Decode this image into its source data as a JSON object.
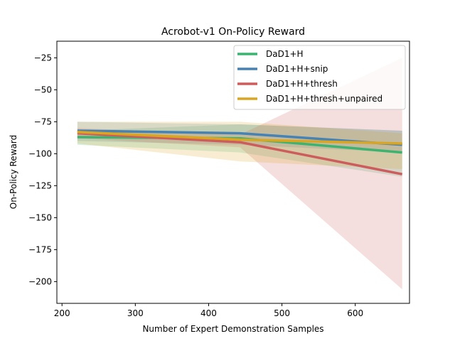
{
  "chart_data": {
    "type": "line",
    "title": "Acrobot-v1 On-Policy Reward",
    "xlabel": "Number of Expert Demonstration Samples",
    "ylabel": "On-Policy Reward",
    "xlim": [
      193,
      674
    ],
    "ylim": [
      -217,
      -12
    ],
    "xticks": [
      200,
      300,
      400,
      500,
      600
    ],
    "yticks": [
      -25,
      -50,
      -75,
      -100,
      -125,
      -150,
      -175,
      -200
    ],
    "legend_position": "upper-right",
    "x": [
      221,
      443,
      664
    ],
    "series": [
      {
        "name": "DaD1+H",
        "color": "#3cb371",
        "values": [
          -87,
          -88,
          -99
        ],
        "lower": [
          -93,
          -99,
          -118
        ],
        "upper": [
          -82,
          -77,
          -82
        ]
      },
      {
        "name": "DaD1+H+snip",
        "color": "#4682b4",
        "values": [
          -82,
          -84,
          -93
        ],
        "lower": [
          -90,
          -93,
          -99
        ],
        "upper": [
          -75,
          -77,
          -82
        ]
      },
      {
        "name": "DaD1+H+thresh",
        "color": "#cd5c5c",
        "values": [
          -84,
          -91,
          -116
        ],
        "lower": [
          -88,
          -95,
          -206
        ],
        "upper": [
          -80,
          -85,
          -25
        ]
      },
      {
        "name": "DaD1+H+thresh+unpaired",
        "color": "#daa520",
        "values": [
          -83,
          -89,
          -92
        ],
        "lower": [
          -92,
          -106,
          -112
        ],
        "upper": [
          -75,
          -75,
          -84
        ]
      }
    ]
  }
}
